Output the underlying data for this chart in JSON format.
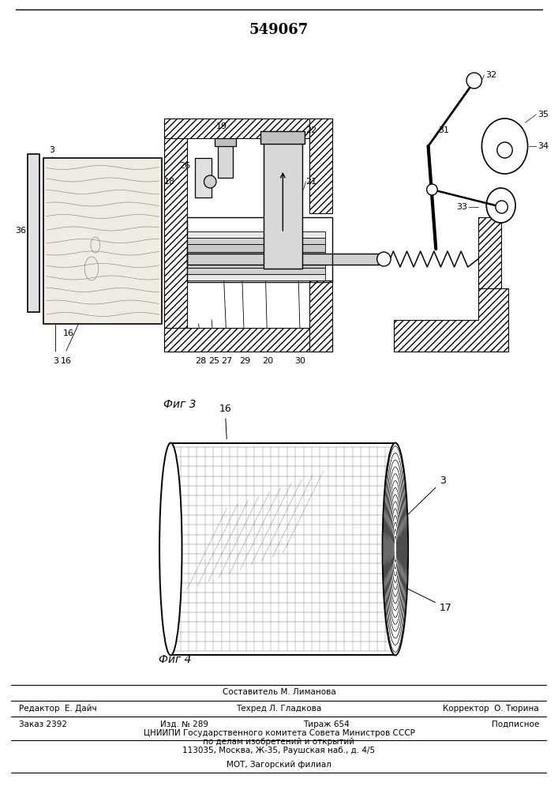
{
  "patent_number": "549067",
  "bg_color": "#ffffff",
  "line_color": "#000000",
  "footer_line1_center": "Составитель М. Лиманова",
  "footer_line1_left": "Редактор  Е. Дайч",
  "footer_line1_right": "Корректор  О. Тюрина",
  "footer_line2_center": "Техред Л. Гладкова",
  "footer_line3_left": "Заказ 2392",
  "footer_line3_center1": "Изд. № 289",
  "footer_line3_center2": "Тираж 654",
  "footer_line3_right": "Подписное",
  "footer_line4": "ЦНИИПИ Государственного комитета Совета Министров СССР",
  "footer_line5": "по делам изобретений и открытий",
  "footer_line6": "113035, Москва, Ж-35, Раушская наб., д. 4/5",
  "footer_line7": "МОТ, Загорский филиал"
}
